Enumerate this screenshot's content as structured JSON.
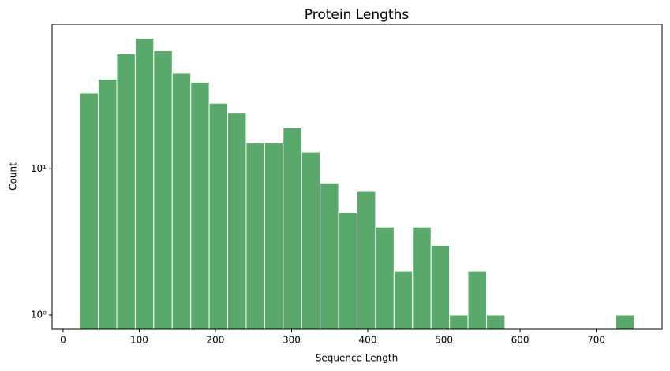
{
  "chart_data": {
    "type": "histogram",
    "title": "Protein Lengths",
    "x_label": "Sequence Length",
    "y_label": "Count",
    "bins": [
      22,
      46.27,
      70.53,
      94.8,
      119.07,
      143.33,
      167.6,
      191.87,
      216.13,
      240.4,
      264.67,
      288.93,
      313.2,
      337.47,
      361.73,
      386,
      410.27,
      434.53,
      458.8,
      483.07,
      507.33,
      531.6,
      555.87,
      580.13,
      604.4,
      628.67,
      652.93,
      677.2,
      701.47,
      725.73,
      750
    ],
    "values": [
      33,
      41,
      61,
      78,
      64,
      45,
      39,
      28,
      24,
      15,
      15,
      19,
      13,
      8,
      5,
      7,
      4,
      2,
      4,
      3,
      1,
      2,
      1,
      0,
      0,
      0,
      0,
      0,
      0,
      1
    ],
    "color": "#59a96a",
    "edge_color": "#ffffff",
    "xlim": [
      -14.4,
      786.4
    ],
    "xticks": [
      0,
      100,
      200,
      300,
      400,
      500,
      600,
      700
    ],
    "ylim": [
      0.8,
      97
    ],
    "y_log": true,
    "yticks": [
      {
        "value": 1,
        "label": "10⁰"
      },
      {
        "value": 10,
        "label": "10¹"
      }
    ]
  }
}
